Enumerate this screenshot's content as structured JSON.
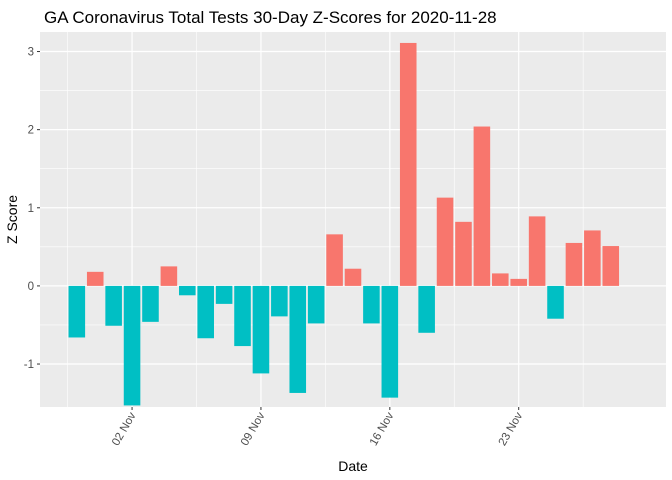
{
  "chart_data": {
    "type": "bar",
    "title": "GA Coronavirus Total Tests 30-Day Z-Scores for 2020-11-28",
    "xlabel": "Date",
    "ylabel": "Z Score",
    "x_ticks": [
      "02 Nov",
      "09 Nov",
      "16 Nov",
      "23 Nov"
    ],
    "x_tick_dates": [
      "2020-11-02",
      "2020-11-09",
      "2020-11-16",
      "2020-11-23"
    ],
    "y_ticks": [
      -1,
      0,
      1,
      2,
      3
    ],
    "ylim": [
      -1.55,
      3.25
    ],
    "xlim": [
      "2020-10-28",
      "2020-12-01"
    ],
    "grid": true,
    "legend": "none",
    "colors": {
      "positive": "#F8766D",
      "negative": "#00BFC4",
      "panel": "#EBEBEB",
      "grid": "#FFFFFF"
    },
    "dates": [
      "2020-10-30",
      "2020-10-31",
      "2020-11-01",
      "2020-11-02",
      "2020-11-03",
      "2020-11-04",
      "2020-11-05",
      "2020-11-06",
      "2020-11-07",
      "2020-11-08",
      "2020-11-09",
      "2020-11-10",
      "2020-11-11",
      "2020-11-12",
      "2020-11-13",
      "2020-11-14",
      "2020-11-15",
      "2020-11-16",
      "2020-11-17",
      "2020-11-18",
      "2020-11-19",
      "2020-11-20",
      "2020-11-21",
      "2020-11-22",
      "2020-11-23",
      "2020-11-24",
      "2020-11-25",
      "2020-11-26",
      "2020-11-27",
      "2020-11-28"
    ],
    "values": [
      -0.66,
      0.18,
      -0.51,
      -1.53,
      -0.46,
      0.25,
      -0.12,
      -0.67,
      -0.23,
      -0.77,
      -1.12,
      -0.39,
      -1.37,
      -0.48,
      0.66,
      0.22,
      -0.48,
      -1.43,
      3.11,
      -0.6,
      1.13,
      0.82,
      2.04,
      0.16,
      0.09,
      0.89,
      -0.42,
      0.55,
      0.71,
      0.51
    ]
  }
}
